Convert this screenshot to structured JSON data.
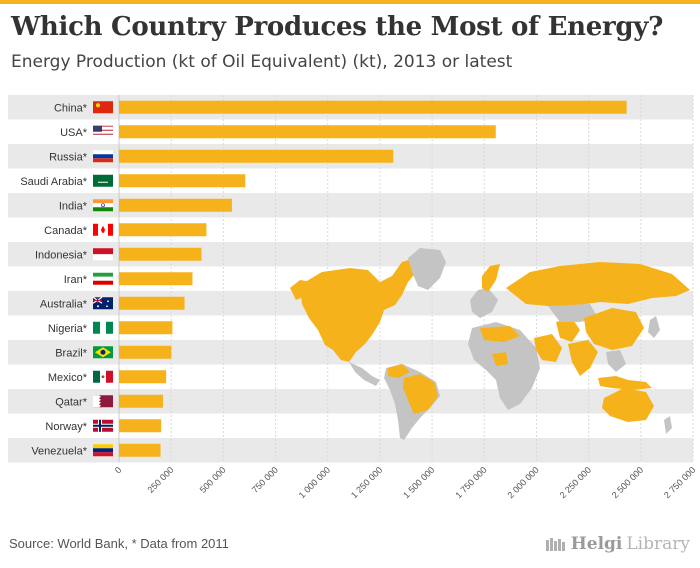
{
  "header": {
    "title": "Which Country Produces the Most of Energy?",
    "subtitle": "Energy Production (kt of Oil Equivalent) (kt), 2013 or latest"
  },
  "footer": {
    "source": "Source: World Bank, * Data from 2011",
    "brand_bold": "Helgi",
    "brand_light": "Library"
  },
  "colors": {
    "bar": "#f6b21b",
    "row_band": "#e9e9e9",
    "map_highlight": "#f6b21b",
    "map_other": "#c4c4c4"
  },
  "chart_data": {
    "type": "bar",
    "orientation": "horizontal",
    "title": "Which Country Produces the Most of Energy?",
    "subtitle": "Energy Production (kt of Oil Equivalent) (kt), 2013 or latest",
    "categories": [
      "China*",
      "USA*",
      "Russia*",
      "Saudi Arabia*",
      "India*",
      "Canada*",
      "Indonesia*",
      "Iran*",
      "Australia*",
      "Nigeria*",
      "Brazil*",
      "Mexico*",
      "Qatar*",
      "Norway*",
      "Venezuela*"
    ],
    "flags": [
      "flag-china",
      "flag-usa",
      "flag-russia",
      "flag-saudi-arabia",
      "flag-india",
      "flag-canada",
      "flag-indonesia",
      "flag-iran",
      "flag-australia",
      "flag-nigeria",
      "flag-brazil",
      "flag-mexico",
      "flag-qatar",
      "flag-norway",
      "flag-venezuela"
    ],
    "values": [
      2432000,
      1805000,
      1314000,
      605000,
      541000,
      419000,
      395000,
      352000,
      314000,
      256000,
      251000,
      226000,
      211000,
      202000,
      199000
    ],
    "xlim": [
      0,
      2750000
    ],
    "ticks": [
      0,
      250000,
      500000,
      750000,
      1000000,
      1250000,
      1500000,
      1750000,
      2000000,
      2250000,
      2500000,
      2750000
    ],
    "tick_labels": [
      "0",
      "250 000",
      "500 000",
      "750 000",
      "1 000 000",
      "1 250 000",
      "1 500 000",
      "1 750 000",
      "2 000 000",
      "2 250 000",
      "2 500 000",
      "2 750 000"
    ],
    "xlabel": "",
    "ylabel": "",
    "grid": true,
    "background_map": "world map with producing countries highlighted"
  }
}
